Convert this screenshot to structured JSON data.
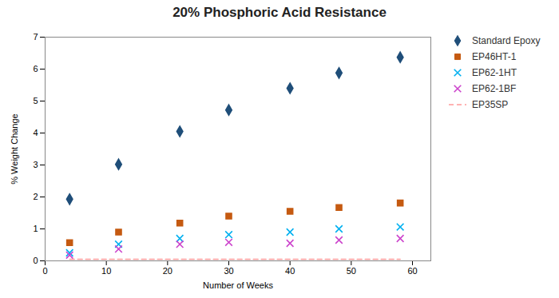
{
  "chart_data": {
    "type": "scatter",
    "title": "20% Phosphoric Acid Resistance",
    "xlabel": "Number of Weeks",
    "ylabel": "% Weight Change",
    "x": [
      4,
      12,
      22,
      30,
      40,
      48,
      58
    ],
    "series": [
      {
        "name": "Standard Epoxy",
        "color": "#1F4E79",
        "marker": "diamond",
        "line_style": "none",
        "values": [
          1.93,
          3.02,
          4.05,
          4.72,
          5.4,
          5.88,
          6.37
        ]
      },
      {
        "name": "EP46HT-1",
        "color": "#C55A11",
        "marker": "square",
        "line_style": "none",
        "values": [
          0.57,
          0.9,
          1.18,
          1.4,
          1.55,
          1.67,
          1.81
        ]
      },
      {
        "name": "EP62-1HT",
        "color": "#00B0F0",
        "marker": "x",
        "line_style": "none",
        "values": [
          0.25,
          0.52,
          0.7,
          0.82,
          0.9,
          1.0,
          1.06
        ]
      },
      {
        "name": "EP62-1BF",
        "color": "#CC44CC",
        "marker": "x",
        "line_style": "none",
        "values": [
          0.18,
          0.37,
          0.52,
          0.58,
          0.55,
          0.65,
          0.7
        ]
      },
      {
        "name": "EP35SP",
        "color": "#FF9999",
        "type": "line",
        "marker": "none",
        "line_style": "dashed",
        "values": [
          0.05,
          0.05,
          0.05,
          0.05,
          0.05,
          0.05,
          0.05
        ]
      }
    ],
    "xlim": [
      0,
      63
    ],
    "xticks": [
      0,
      10,
      20,
      30,
      40,
      50,
      60
    ],
    "ylim": [
      0,
      7
    ],
    "yticks": [
      0,
      1,
      2,
      3,
      4,
      5,
      6,
      7
    ],
    "grid": false,
    "legend": "upper right"
  }
}
